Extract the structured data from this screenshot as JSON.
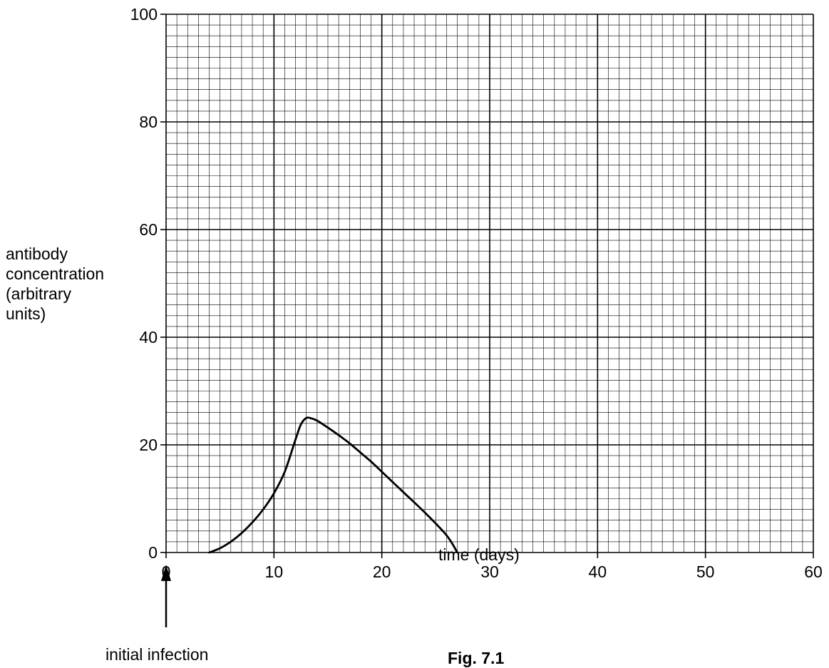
{
  "chart_data": {
    "type": "line",
    "title": "",
    "caption": "Fig. 7.1",
    "xlabel": "time (days)",
    "ylabel_lines": [
      "antibody",
      "concentration",
      "(arbitrary",
      "units)"
    ],
    "xlim": [
      0,
      60
    ],
    "ylim": [
      0,
      100
    ],
    "x_ticks": [
      0,
      10,
      20,
      30,
      40,
      50,
      60
    ],
    "y_ticks": [
      0,
      20,
      40,
      60,
      80,
      100
    ],
    "grid": true,
    "annotation": "initial infection",
    "annotation_x": 0,
    "series": [
      {
        "x": [
          4,
          5,
          6,
          7,
          8,
          9,
          10,
          11,
          12,
          12.5,
          13,
          13.5,
          14,
          15,
          16,
          17,
          18,
          19,
          20,
          22,
          24,
          26,
          27
        ],
        "y": [
          0,
          0.8,
          2,
          3.6,
          5.6,
          8,
          11,
          15,
          21,
          23.8,
          25,
          24.9,
          24.5,
          23.2,
          21.8,
          20.3,
          18.6,
          16.9,
          15,
          11.2,
          7.4,
          3.2,
          0
        ]
      }
    ],
    "line_color": "#000000"
  }
}
